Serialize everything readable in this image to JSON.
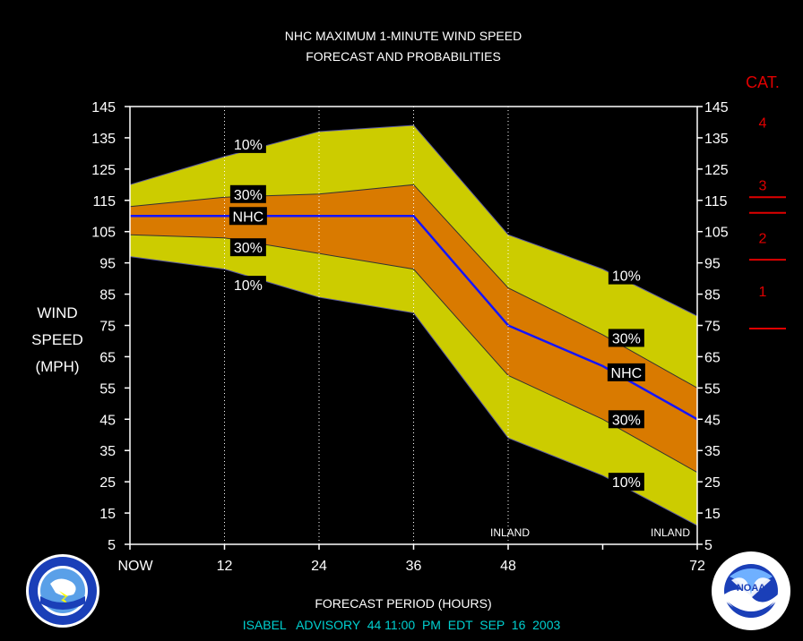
{
  "title": [
    "NHC MAXIMUM 1-MINUTE WIND SPEED",
    "FORECAST AND PROBABILITIES"
  ],
  "ylabel": [
    "WIND",
    "SPEED",
    "(MPH)"
  ],
  "xlabel": "FORECAST PERIOD (HOURS)",
  "advisory": "ISABEL   ADVISORY  44 11:00  PM  EDT  SEP  16  2003",
  "colors": {
    "outer_band": "#cccc00",
    "inner_band": "#d97a00",
    "nhc_line": "#1414ff",
    "category": "#e00000",
    "advisory": "#00d0d0"
  },
  "chart_data": {
    "type": "area",
    "x": [
      0,
      12,
      24,
      36,
      48,
      60,
      72
    ],
    "x_tick_labels": [
      "NOW",
      "12",
      "24",
      "36",
      "48",
      "",
      "72"
    ],
    "y_ticks": [
      5,
      15,
      25,
      35,
      45,
      55,
      65,
      75,
      85,
      95,
      105,
      115,
      125,
      135,
      145
    ],
    "xlim": [
      0,
      72
    ],
    "ylim": [
      5,
      145
    ],
    "series": [
      {
        "name": "10%",
        "values": [
          120,
          129,
          137,
          139,
          104,
          93,
          78
        ]
      },
      {
        "name": "30%",
        "values": [
          113,
          116,
          117,
          120,
          87,
          72,
          55
        ]
      },
      {
        "name": "NHC",
        "values": [
          110,
          110,
          110,
          110,
          75,
          62,
          45
        ]
      },
      {
        "name": "30%",
        "values": [
          104,
          103,
          98,
          93,
          59,
          45,
          28
        ]
      },
      {
        "name": "10%",
        "values": [
          97,
          93,
          84,
          79,
          39,
          27,
          11
        ]
      }
    ],
    "labels": [
      {
        "text": "10%",
        "x": 15,
        "y": 133
      },
      {
        "text": "30%",
        "x": 15,
        "y": 117
      },
      {
        "text": "NHC",
        "x": 15,
        "y": 110
      },
      {
        "text": "30%",
        "x": 15,
        "y": 100
      },
      {
        "text": "10%",
        "x": 15,
        "y": 88
      },
      {
        "text": "10%",
        "x": 63,
        "y": 91
      },
      {
        "text": "30%",
        "x": 63,
        "y": 71
      },
      {
        "text": "NHC",
        "x": 63,
        "y": 60
      },
      {
        "text": "30%",
        "x": 63,
        "y": 45
      },
      {
        "text": "10%",
        "x": 63,
        "y": 25
      }
    ],
    "annotations": [
      {
        "text": "INLAND",
        "x": 48,
        "y": 7
      },
      {
        "text": "INLAND",
        "x": 72,
        "y": 7
      }
    ],
    "category_title": "CAT.",
    "categories": [
      {
        "name": "4",
        "y": 140
      },
      {
        "name": "3",
        "y": 120
      },
      {
        "name": "2",
        "y": 103
      },
      {
        "name": "1",
        "y": 86
      }
    ],
    "category_bounds": [
      116,
      96,
      111,
      74
    ],
    "grid_x": [
      12,
      24,
      36,
      48
    ],
    "grid": "dotted-vertical"
  }
}
